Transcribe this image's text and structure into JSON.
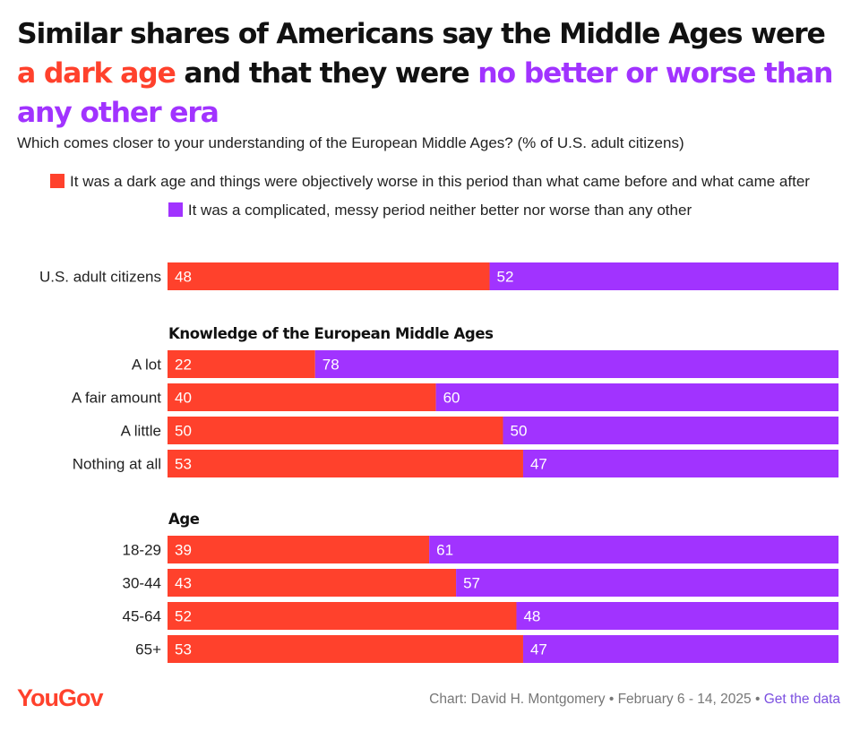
{
  "title": {
    "part1": "Similar shares of Americans say the Middle Ages were ",
    "highlight1": "a dark age",
    "part2": " and that they were ",
    "highlight2": "no better or worse than any other era"
  },
  "subtitle": "Which comes closer to your understanding of the European Middle Ages? (% of U.S. adult citizens)",
  "colors": {
    "dark_age": "#ff412c",
    "neither": "#a133ff"
  },
  "footer": {
    "logo": "YouGov",
    "credit": "Chart: David H. Montgomery • February 6 - 14, 2025 • ",
    "get_data": "Get the data"
  },
  "chart_data": {
    "type": "bar",
    "orientation": "horizontal-stacked",
    "xlim": [
      0,
      100
    ],
    "legend_placement": "top",
    "series": [
      {
        "name": "It was a dark age and things were objectively worse in this period than what came before and what came after",
        "color": "#ff412c"
      },
      {
        "name": "It was a complicated, messy period neither better nor worse than any other",
        "color": "#a133ff"
      }
    ],
    "groups": [
      {
        "heading": "",
        "rows": [
          {
            "label": "U.S. adult citizens",
            "values": [
              48,
              52
            ]
          }
        ]
      },
      {
        "heading": "Knowledge of the European Middle Ages",
        "rows": [
          {
            "label": "A lot",
            "values": [
              22,
              78
            ]
          },
          {
            "label": "A fair amount",
            "values": [
              40,
              60
            ]
          },
          {
            "label": "A little",
            "values": [
              50,
              50
            ]
          },
          {
            "label": "Nothing at all",
            "values": [
              53,
              47
            ]
          }
        ]
      },
      {
        "heading": "Age",
        "rows": [
          {
            "label": "18-29",
            "values": [
              39,
              61
            ]
          },
          {
            "label": "30-44",
            "values": [
              43,
              57
            ]
          },
          {
            "label": "45-64",
            "values": [
              52,
              48
            ]
          },
          {
            "label": "65+",
            "values": [
              53,
              47
            ]
          }
        ]
      }
    ]
  }
}
